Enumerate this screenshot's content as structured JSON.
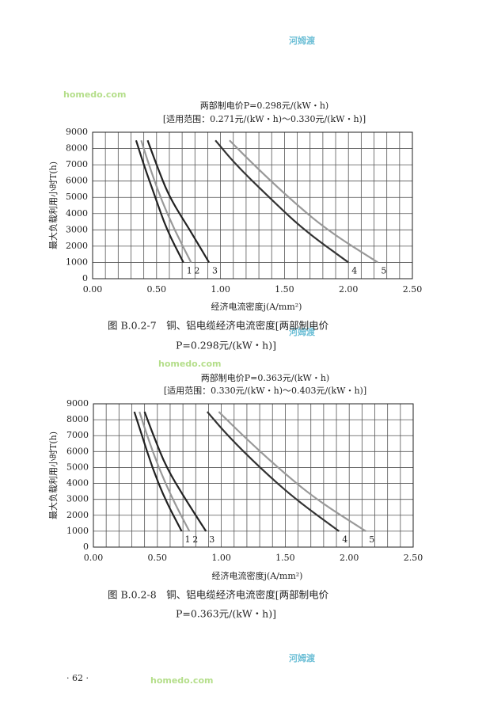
{
  "watermark": [
    "homedo.com",
    "河姆渡"
  ],
  "chart_data": [
    {
      "type": "line",
      "title": "两部制电价P=0.298元/(kW・h)",
      "subtitle": "[适用范围：0.271元/(kW・h)～0.330元/(kW・h)]",
      "x_label": "经济电流密度j(A/mm²)",
      "y_label": "最大负载利用小时T(h)",
      "caption": [
        "图 B.0.2-7　铜、铝电缆经济电流密度[两部制电价",
        "P=0.298元/(kW・h)]"
      ],
      "xlim": [
        0,
        2.5
      ],
      "xticks": [
        {
          "value": 0,
          "label": "0.00"
        },
        {
          "value": 0.5,
          "label": "0.50"
        },
        {
          "value": 1,
          "label": "1.00"
        },
        {
          "value": 1.5,
          "label": "1.50"
        },
        {
          "value": 2,
          "label": "2.00"
        },
        {
          "value": 2.5,
          "label": "2.50"
        }
      ],
      "ylim": [
        0,
        9000
      ],
      "yticks": [
        0,
        1000,
        2000,
        3000,
        4000,
        5000,
        6000,
        7000,
        8000,
        9000
      ],
      "grid": true,
      "series": [
        {
          "name": "1",
          "color": "#222222",
          "x": [
            0.34,
            0.4,
            0.49,
            0.58,
            0.71
          ],
          "values": [
            8500,
            7000,
            5000,
            3000,
            1000
          ]
        },
        {
          "name": "2",
          "color": "#999999",
          "x": [
            0.38,
            0.44,
            0.53,
            0.64,
            0.77
          ],
          "values": [
            8500,
            7000,
            5000,
            3000,
            1000
          ]
        },
        {
          "name": "3",
          "color": "#222222",
          "x": [
            0.43,
            0.5,
            0.6,
            0.76,
            0.91
          ],
          "values": [
            8500,
            7000,
            5000,
            3000,
            1000
          ]
        },
        {
          "name": "4",
          "color": "#333333",
          "x": [
            0.96,
            1.12,
            1.38,
            1.65,
            2.0
          ],
          "values": [
            8500,
            7000,
            5000,
            3000,
            1000
          ]
        },
        {
          "name": "5",
          "color": "#999999",
          "x": [
            1.07,
            1.26,
            1.53,
            1.83,
            2.23
          ],
          "values": [
            8500,
            7000,
            5000,
            3000,
            1000
          ]
        }
      ]
    },
    {
      "type": "line",
      "title": "两部制电价P=0.363元/(kW・h)",
      "subtitle": "[适用范围：0.330元/(kW・h)～0.403元/(kW・h)]",
      "x_label": "经济电流密度j(A/mm²)",
      "y_label": "最大负载利用小时T(h)",
      "caption": [
        "图 B.0.2-8　铜、铝电缆经济电流密度[两部制电价",
        "P=0.363元/(kW・h)]"
      ],
      "xlim": [
        0,
        2.5
      ],
      "xticks": [
        {
          "value": 0,
          "label": "0.00"
        },
        {
          "value": 0.5,
          "label": "0.50"
        },
        {
          "value": 1,
          "label": "1.00"
        },
        {
          "value": 1.5,
          "label": "1.50"
        },
        {
          "value": 2,
          "label": "2.00"
        },
        {
          "value": 2.5,
          "label": "2.50"
        }
      ],
      "ylim": [
        0,
        9000
      ],
      "yticks": [
        0,
        1000,
        2000,
        3000,
        4000,
        5000,
        6000,
        7000,
        8000,
        9000
      ],
      "grid": true,
      "series": [
        {
          "name": "1",
          "color": "#222222",
          "x": [
            0.32,
            0.38,
            0.46,
            0.56,
            0.69
          ],
          "values": [
            8500,
            7000,
            5000,
            3000,
            1000
          ]
        },
        {
          "name": "2",
          "color": "#999999",
          "x": [
            0.36,
            0.42,
            0.51,
            0.62,
            0.75
          ],
          "values": [
            8500,
            7000,
            5000,
            3000,
            1000
          ]
        },
        {
          "name": "3",
          "color": "#222222",
          "x": [
            0.4,
            0.47,
            0.57,
            0.72,
            0.88
          ],
          "values": [
            8500,
            7000,
            5000,
            3000,
            1000
          ]
        },
        {
          "name": "4",
          "color": "#333333",
          "x": [
            0.89,
            1.05,
            1.3,
            1.58,
            1.92
          ],
          "values": [
            8500,
            7000,
            5000,
            3000,
            1000
          ]
        },
        {
          "name": "5",
          "color": "#999999",
          "x": [
            0.98,
            1.17,
            1.44,
            1.74,
            2.13
          ],
          "values": [
            8500,
            7000,
            5000,
            3000,
            1000
          ]
        }
      ]
    }
  ],
  "page_number": "· 62 ·"
}
